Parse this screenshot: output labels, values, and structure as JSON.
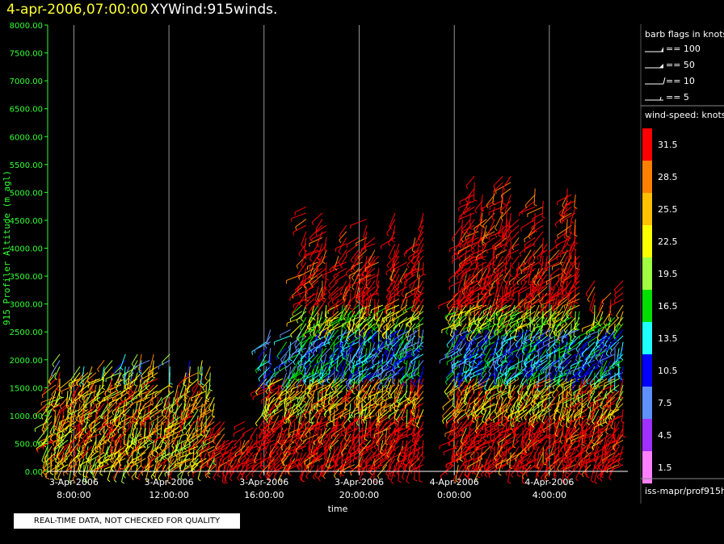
{
  "header": {
    "datetime": "4-apr-2006,07:00:00",
    "title": "XYWind:915winds."
  },
  "warning": "REAL-TIME DATA, NOT CHECKED FOR QUALITY",
  "legend": {
    "barb_title": "barb flags in knots",
    "barbs": [
      "== 100",
      "== 50",
      "== 10",
      "== 5"
    ],
    "speed_title": "wind-speed: knots",
    "source": "iss-mapr/prof915h"
  },
  "chart_data": {
    "type": "scatter",
    "title": "XYWind:915winds.",
    "xlabel": "time",
    "ylabel": "915 Profiler Altitude (m agl)",
    "ylim": [
      0,
      8000
    ],
    "yticks": [
      "0.00",
      "500.00",
      "1000.00",
      "1500.00",
      "2000.00",
      "2500.00",
      "3000.00",
      "3500.00",
      "4000.00",
      "4500.00",
      "5000.00",
      "5500.00",
      "6000.00",
      "6500.00",
      "7000.00",
      "7500.00",
      "8000.00"
    ],
    "xticks": [
      {
        "date": "3-Apr-2006",
        "time": "8:00:00"
      },
      {
        "date": "3-Apr-2006",
        "time": "12:00:00"
      },
      {
        "date": "3-Apr-2006",
        "time": "16:00:00"
      },
      {
        "date": "3-Apr-2006",
        "time": "20:00:00"
      },
      {
        "date": "4-Apr-2006",
        "time": "0:00:00"
      },
      {
        "date": "4-Apr-2006",
        "time": "4:00:00"
      }
    ],
    "xlim_hours": [
      6.9,
      31.3
    ],
    "colorbar": [
      {
        "value": "31.5",
        "color": "#ff0000"
      },
      {
        "value": "28.5",
        "color": "#ff8000"
      },
      {
        "value": "25.5",
        "color": "#ffc000"
      },
      {
        "value": "22.5",
        "color": "#ffff00"
      },
      {
        "value": "19.5",
        "color": "#a0ff40"
      },
      {
        "value": "16.5",
        "color": "#00e000"
      },
      {
        "value": "13.5",
        "color": "#20ffff"
      },
      {
        "value": "10.5",
        "color": "#0000ff"
      },
      {
        "value": "7.5",
        "color": "#6090ff"
      },
      {
        "value": "4.5",
        "color": "#a030ff"
      },
      {
        "value": "1.5",
        "color": "#ff80ff"
      }
    ],
    "profiles_summary": [
      {
        "start_hour": 6.9,
        "end_hour": 10.0,
        "max_altitude_m": 2300
      },
      {
        "start_hour": 10.0,
        "end_hour": 14.0,
        "max_altitude_m": 2200
      },
      {
        "start_hour": 14.0,
        "end_hour": 15.9,
        "max_altitude_m": 1000
      },
      {
        "start_hour": 16.1,
        "end_hour": 17.6,
        "max_altitude_m": 3000
      },
      {
        "start_hour": 17.6,
        "end_hour": 22.8,
        "max_altitude_m": 4800
      },
      {
        "start_hour": 24.0,
        "end_hour": 29.4,
        "max_altitude_m": 5600
      },
      {
        "start_hour": 29.4,
        "end_hour": 31.2,
        "max_altitude_m": 3600
      }
    ]
  }
}
